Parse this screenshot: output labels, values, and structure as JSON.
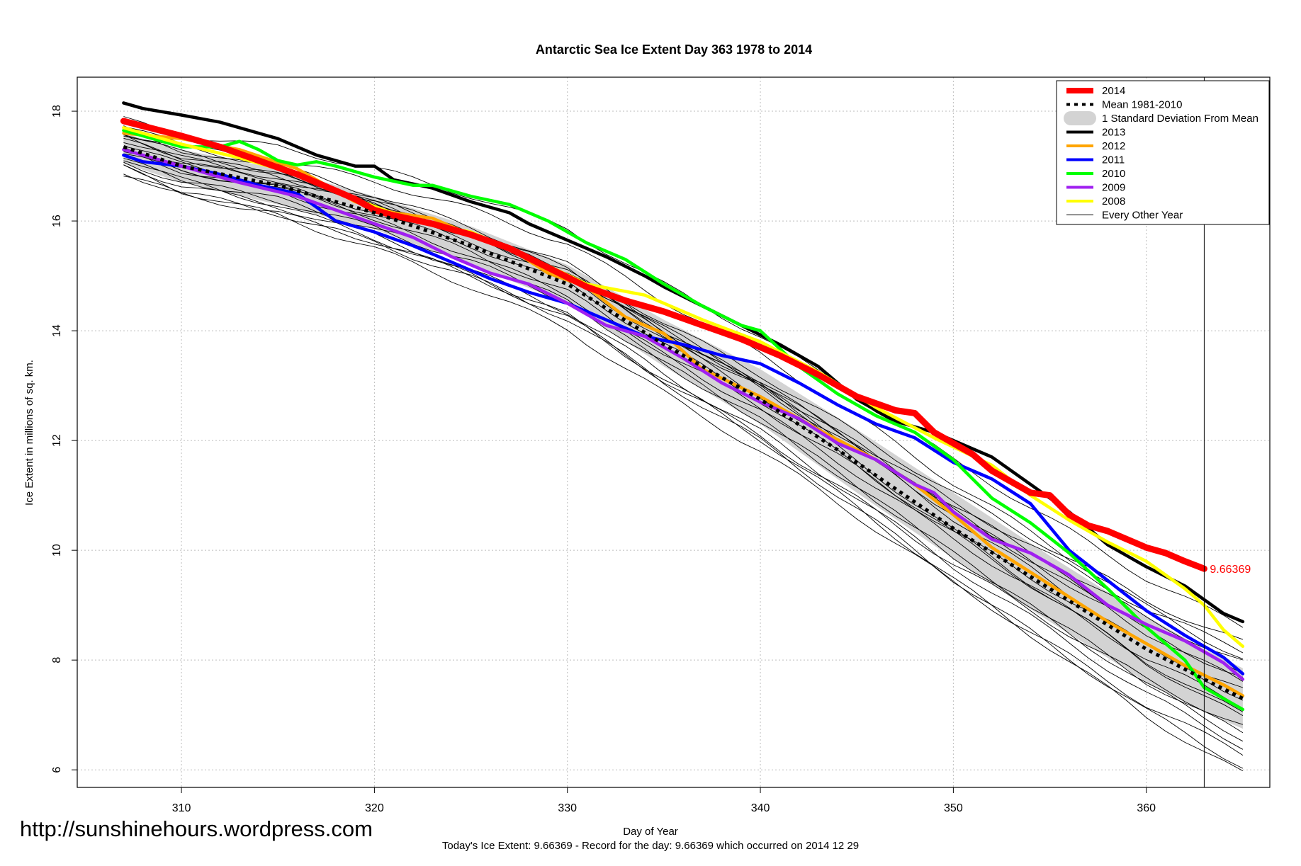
{
  "page": {
    "watermark": "http://sunshinehours.wordpress.com",
    "footer_note": "Today's Ice Extent: 9.66369  - Record for the day: 9.66369 which occurred on 2014 12 29"
  },
  "chart_data": {
    "type": "line",
    "title": "Antarctic Sea Ice Extent Day 363 1978 to 2014",
    "xlabel": "Day of Year",
    "ylabel": "Ice Extent in millions of sq. km.",
    "xlim": [
      304.6,
      366.4
    ],
    "ylim": [
      5.68,
      18.62
    ],
    "xticks": [
      310,
      320,
      330,
      340,
      350,
      360
    ],
    "yticks": [
      6,
      8,
      10,
      12,
      14,
      16,
      18
    ],
    "grid": true,
    "legend_position": "top-right",
    "marker_day": 363,
    "annotation": {
      "text": "9.66369",
      "x": 363,
      "y": 9.66369,
      "color": "#ff0000"
    },
    "colors": {
      "2014": "#ff0000",
      "mean": "#000000",
      "band": "#d3d3d3",
      "2013": "#000000",
      "2012": "#ffa500",
      "2011": "#0000ff",
      "2010": "#00ff00",
      "2009": "#a020f0",
      "2008": "#ffff00",
      "other": "#000000"
    },
    "legend": [
      {
        "key": "2014",
        "label": "2014",
        "style": "thick"
      },
      {
        "key": "mean",
        "label": "Mean 1981-2010",
        "style": "dotted"
      },
      {
        "key": "band",
        "label": "1 Standard Deviation From Mean",
        "style": "band"
      },
      {
        "key": "2013",
        "label": "2013",
        "style": "line"
      },
      {
        "key": "2012",
        "label": "2012",
        "style": "line"
      },
      {
        "key": "2011",
        "label": "2011",
        "style": "line"
      },
      {
        "key": "2010",
        "label": "2010",
        "style": "line"
      },
      {
        "key": "2009",
        "label": "2009",
        "style": "line"
      },
      {
        "key": "2008",
        "label": "2008",
        "style": "line"
      },
      {
        "key": "other",
        "label": "Every Other Year",
        "style": "thin"
      }
    ],
    "mean": {
      "x": [
        307,
        310,
        315,
        320,
        325,
        330,
        335,
        340,
        345,
        350,
        355,
        360,
        363,
        365
      ],
      "y": [
        17.35,
        17.0,
        16.65,
        16.15,
        15.55,
        14.85,
        13.75,
        12.75,
        11.6,
        10.4,
        9.3,
        8.2,
        7.65,
        7.3
      ]
    },
    "band": {
      "x": [
        307,
        310,
        315,
        320,
        325,
        330,
        335,
        340,
        345,
        350,
        355,
        360,
        363,
        365
      ],
      "upper": [
        17.6,
        17.3,
        16.95,
        16.45,
        15.9,
        15.2,
        14.2,
        13.3,
        12.2,
        11.05,
        9.9,
        8.8,
        8.2,
        7.85
      ],
      "lower": [
        17.05,
        16.7,
        16.3,
        15.85,
        15.2,
        14.5,
        13.35,
        12.3,
        11.05,
        9.85,
        8.7,
        7.6,
        7.05,
        6.75
      ]
    },
    "series": [
      {
        "name": "2013",
        "x": [
          307,
          308,
          310,
          312,
          315,
          317,
          319,
          320,
          321,
          323,
          325,
          327,
          328,
          330,
          332,
          334,
          335,
          337,
          339,
          341,
          343,
          345,
          347,
          349,
          350,
          352,
          354,
          356,
          358,
          360,
          362,
          364,
          365
        ],
        "y": [
          18.15,
          18.05,
          17.93,
          17.8,
          17.5,
          17.2,
          17.0,
          17.0,
          16.75,
          16.6,
          16.35,
          16.15,
          15.95,
          15.65,
          15.35,
          15.0,
          14.8,
          14.45,
          14.1,
          13.75,
          13.35,
          12.75,
          12.35,
          12.15,
          12.0,
          11.7,
          11.2,
          10.7,
          10.1,
          9.7,
          9.35,
          8.85,
          8.7
        ]
      },
      {
        "name": "2012",
        "x": [
          307,
          310,
          313,
          316,
          319,
          321,
          323,
          325,
          327,
          329,
          331,
          333,
          335,
          337,
          340,
          343,
          346,
          348,
          350,
          352,
          354,
          356,
          358,
          360,
          362,
          364,
          365
        ],
        "y": [
          17.6,
          17.5,
          17.3,
          16.95,
          16.35,
          16.15,
          16.05,
          15.75,
          15.5,
          15.05,
          14.8,
          14.25,
          13.95,
          13.3,
          12.8,
          12.2,
          11.65,
          11.2,
          10.65,
          10.05,
          9.6,
          9.15,
          8.7,
          8.3,
          7.9,
          7.55,
          7.35
        ]
      },
      {
        "name": "2011",
        "x": [
          307,
          308,
          310,
          312,
          314,
          316,
          318,
          320,
          322,
          324,
          326,
          328,
          330,
          332,
          334,
          336,
          338,
          340,
          342,
          344,
          346,
          348,
          350,
          352,
          354,
          356,
          358,
          360,
          362,
          364,
          365
        ],
        "y": [
          17.2,
          17.08,
          17.0,
          16.85,
          16.65,
          16.5,
          16.0,
          15.8,
          15.55,
          15.25,
          14.95,
          14.7,
          14.5,
          14.2,
          13.9,
          13.75,
          13.55,
          13.4,
          13.05,
          12.65,
          12.3,
          12.05,
          11.6,
          11.3,
          10.85,
          10.0,
          9.45,
          8.9,
          8.45,
          8.05,
          7.75
        ]
      },
      {
        "name": "2010",
        "x": [
          307,
          310,
          312,
          313,
          314,
          315,
          316,
          317,
          318,
          320,
          322,
          323,
          325,
          327,
          329,
          331,
          333,
          335,
          337,
          339,
          340,
          342,
          344,
          346,
          348,
          350,
          352,
          354,
          356,
          358,
          360,
          362,
          363,
          365
        ],
        "y": [
          17.65,
          17.35,
          17.35,
          17.45,
          17.3,
          17.1,
          17.02,
          17.08,
          17.0,
          16.8,
          16.65,
          16.65,
          16.45,
          16.3,
          16.0,
          15.6,
          15.3,
          14.85,
          14.45,
          14.1,
          14.0,
          13.35,
          12.85,
          12.45,
          12.15,
          11.65,
          10.95,
          10.5,
          9.95,
          9.3,
          8.6,
          8.0,
          7.5,
          7.1
        ]
      },
      {
        "name": "2009",
        "x": [
          307,
          310,
          313,
          316,
          318,
          320,
          322,
          324,
          326,
          328,
          330,
          332,
          334,
          336,
          338,
          340,
          342,
          344,
          346,
          348,
          349,
          350,
          352,
          354,
          356,
          358,
          360,
          362,
          364,
          365
        ],
        "y": [
          17.3,
          17.0,
          16.7,
          16.45,
          16.2,
          15.95,
          15.7,
          15.35,
          15.05,
          14.85,
          14.5,
          14.1,
          13.9,
          13.5,
          13.05,
          12.7,
          12.4,
          11.95,
          11.65,
          11.2,
          11.05,
          10.7,
          10.2,
          9.95,
          9.55,
          9.0,
          8.65,
          8.35,
          7.95,
          7.65
        ]
      },
      {
        "name": "2008",
        "x": [
          307,
          310,
          313,
          316,
          319,
          322,
          325,
          328,
          331,
          334,
          337,
          340,
          343,
          346,
          349,
          352,
          354,
          356,
          358,
          360,
          362,
          363,
          364,
          365
        ],
        "y": [
          17.7,
          17.4,
          17.15,
          16.85,
          16.4,
          16.0,
          15.8,
          15.35,
          14.85,
          14.65,
          14.2,
          13.8,
          13.25,
          12.6,
          12.05,
          11.55,
          11.0,
          10.55,
          10.15,
          9.8,
          9.3,
          9.0,
          8.55,
          8.25
        ]
      },
      {
        "name": "2014",
        "x": [
          307,
          310,
          312,
          314,
          316,
          318,
          319,
          320,
          321,
          323,
          325,
          327,
          329,
          331,
          333,
          335,
          337,
          339,
          341,
          343,
          345,
          347,
          348,
          349,
          351,
          352,
          353,
          354,
          355,
          356,
          357,
          358,
          359,
          360,
          361,
          362,
          363
        ],
        "y": [
          17.82,
          17.55,
          17.35,
          17.1,
          16.85,
          16.55,
          16.4,
          16.2,
          16.1,
          15.95,
          15.75,
          15.5,
          15.15,
          14.8,
          14.55,
          14.35,
          14.1,
          13.85,
          13.55,
          13.2,
          12.8,
          12.55,
          12.5,
          12.15,
          11.75,
          11.45,
          11.25,
          11.05,
          11.0,
          10.65,
          10.45,
          10.35,
          10.2,
          10.05,
          9.95,
          9.8,
          9.66369
        ]
      }
    ]
  }
}
